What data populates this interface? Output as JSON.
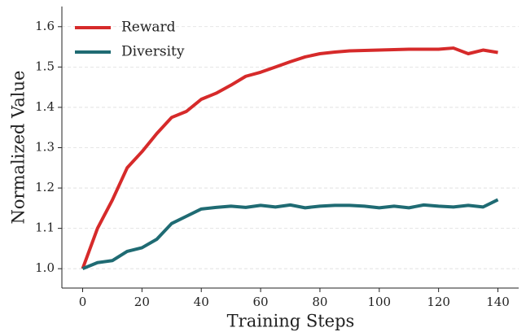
{
  "chart_data": {
    "type": "line",
    "x_label": "Training Steps",
    "y_label": "Normalized Value",
    "x": [
      0,
      5,
      10,
      15,
      20,
      25,
      30,
      35,
      40,
      45,
      50,
      55,
      60,
      65,
      70,
      75,
      80,
      85,
      90,
      95,
      100,
      105,
      110,
      115,
      120,
      125,
      130,
      135,
      140
    ],
    "series": [
      {
        "name": "Reward",
        "color": "#d62a2a",
        "values": [
          1.0,
          1.1,
          1.17,
          1.25,
          1.29,
          1.335,
          1.375,
          1.39,
          1.42,
          1.435,
          1.455,
          1.477,
          1.487,
          1.5,
          1.513,
          1.525,
          1.533,
          1.537,
          1.54,
          1.541,
          1.542,
          1.543,
          1.544,
          1.544,
          1.544,
          1.547,
          1.533,
          1.542,
          1.536
        ]
      },
      {
        "name": "Diversity",
        "color": "#1f6b73",
        "values": [
          1.0,
          1.015,
          1.02,
          1.043,
          1.052,
          1.073,
          1.112,
          1.13,
          1.148,
          1.152,
          1.155,
          1.152,
          1.157,
          1.153,
          1.158,
          1.151,
          1.155,
          1.157,
          1.157,
          1.155,
          1.151,
          1.155,
          1.151,
          1.158,
          1.155,
          1.153,
          1.157,
          1.153,
          1.171
        ]
      }
    ],
    "xlim": [
      -7,
      147
    ],
    "ylim": [
      0.952,
      1.65
    ],
    "xticks": [
      0,
      20,
      40,
      60,
      80,
      100,
      120,
      140
    ],
    "yticks": [
      {
        "value": 1.0,
        "label": "1.0"
      },
      1.1,
      1.2,
      1.3,
      1.4,
      1.5,
      1.6
    ],
    "grid": true,
    "legend": "upper left"
  }
}
